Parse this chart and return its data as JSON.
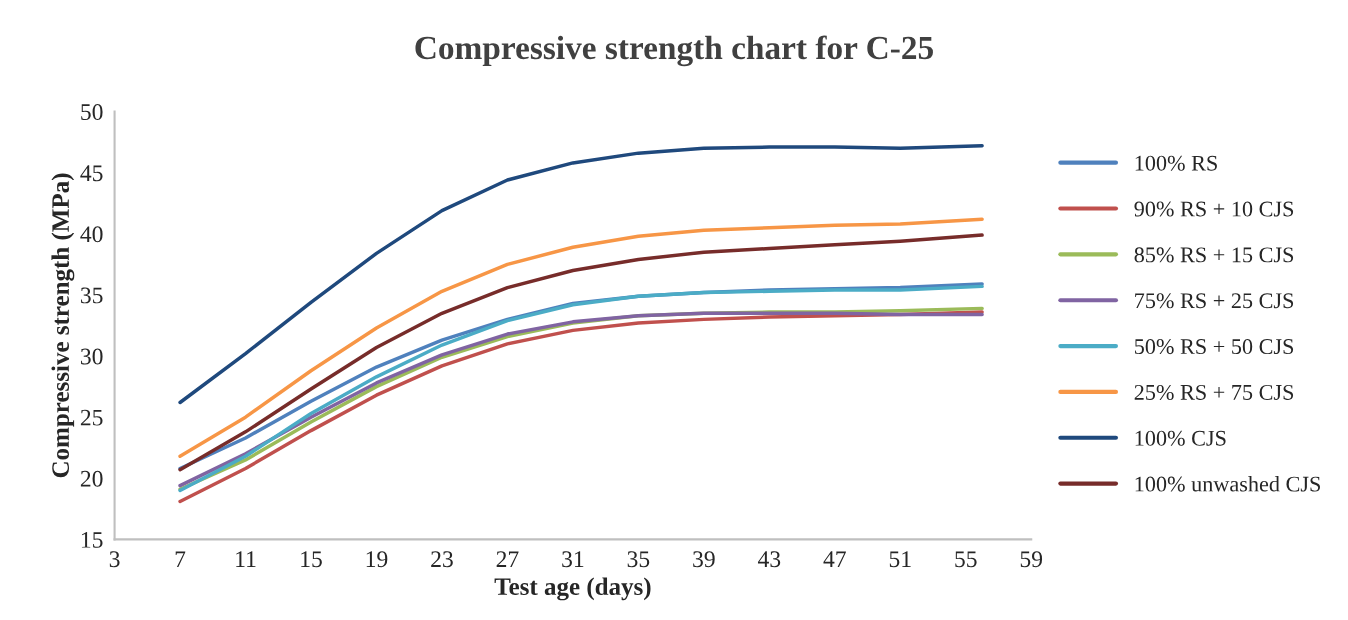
{
  "chart_data": {
    "type": "line",
    "title": "Compressive strength chart for C-25",
    "xlabel": "Test age (days)",
    "ylabel": "Compressive strength (MPa)",
    "x": [
      7,
      11,
      15,
      19,
      23,
      27,
      31,
      35,
      39,
      43,
      47,
      51,
      56
    ],
    "xlim": [
      3,
      59
    ],
    "xticks": [
      3,
      7,
      11,
      15,
      19,
      23,
      27,
      31,
      35,
      39,
      43,
      47,
      51,
      55,
      59
    ],
    "ylim": [
      15,
      50
    ],
    "yticks": [
      15,
      20,
      25,
      30,
      35,
      40,
      45,
      50
    ],
    "grid": false,
    "legend": "right",
    "marker": "none",
    "line_style": "solid",
    "series": [
      {
        "name": "100% RS",
        "color": "#4f81bd",
        "values": [
          20.8,
          23.3,
          26.3,
          29.1,
          31.3,
          33.0,
          34.3,
          34.9,
          35.2,
          35.4,
          35.5,
          35.6,
          35.9
        ]
      },
      {
        "name": "90% RS + 10 CJS",
        "color": "#c0504d",
        "values": [
          18.1,
          20.8,
          23.9,
          26.8,
          29.2,
          31.0,
          32.1,
          32.7,
          33.0,
          33.2,
          33.3,
          33.4,
          33.6
        ]
      },
      {
        "name": "85% RS + 15 CJS",
        "color": "#9bbb59",
        "values": [
          19.1,
          21.5,
          24.6,
          27.5,
          29.9,
          31.6,
          32.7,
          33.3,
          33.5,
          33.6,
          33.6,
          33.7,
          33.9
        ]
      },
      {
        "name": "75% RS + 25 CJS",
        "color": "#8064a2",
        "values": [
          19.4,
          22.0,
          25.0,
          27.8,
          30.1,
          31.8,
          32.8,
          33.3,
          33.5,
          33.5,
          33.5,
          33.4,
          33.4
        ]
      },
      {
        "name": "50% RS + 50 CJS",
        "color": "#4bacc6",
        "values": [
          19.0,
          21.8,
          25.3,
          28.3,
          30.9,
          32.9,
          34.2,
          34.9,
          35.2,
          35.3,
          35.4,
          35.4,
          35.7
        ]
      },
      {
        "name": "25% RS + 75 CJS",
        "color": "#f79646",
        "values": [
          21.8,
          25.0,
          28.8,
          32.3,
          35.3,
          37.5,
          38.9,
          39.8,
          40.3,
          40.5,
          40.7,
          40.8,
          41.2
        ]
      },
      {
        "name": "100% CJS",
        "color": "#1f497d",
        "values": [
          26.2,
          30.2,
          34.4,
          38.4,
          41.9,
          44.4,
          45.8,
          46.6,
          47.0,
          47.1,
          47.1,
          47.0,
          47.2
        ]
      },
      {
        "name": "100% unwashed CJS",
        "color": "#772c2a",
        "values": [
          20.7,
          23.8,
          27.3,
          30.7,
          33.5,
          35.6,
          37.0,
          37.9,
          38.5,
          38.8,
          39.1,
          39.4,
          39.9
        ]
      }
    ]
  }
}
